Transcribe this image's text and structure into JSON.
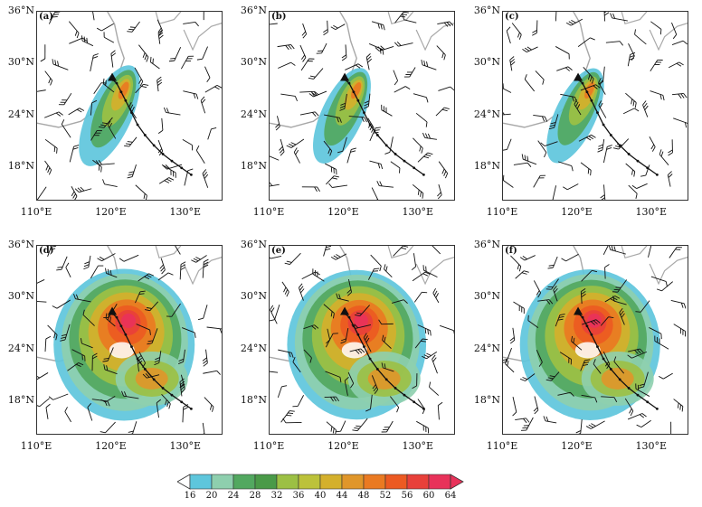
{
  "panels": [
    {
      "id": "a",
      "label": "(a)",
      "intensity": 0.55
    },
    {
      "id": "b",
      "label": "(b)",
      "intensity": 0.4
    },
    {
      "id": "c",
      "label": "(c)",
      "intensity": 0.38
    },
    {
      "id": "d",
      "label": "(d)",
      "intensity": 1.0
    },
    {
      "id": "e",
      "label": "(e)",
      "intensity": 0.95
    },
    {
      "id": "f",
      "label": "(f)",
      "intensity": 0.98
    }
  ],
  "y_ticks": [
    "36°N",
    "30°N",
    "24°N",
    "18°N"
  ],
  "x_ticks": [
    "110°E",
    "120°E",
    "130°E"
  ],
  "colorbar": {
    "levels": [
      "16",
      "20",
      "24",
      "28",
      "32",
      "36",
      "40",
      "44",
      "48",
      "52",
      "56",
      "60",
      "64"
    ],
    "colors": [
      "#5ec6dc",
      "#8ecfae",
      "#52a860",
      "#4a9a48",
      "#9cc044",
      "#bcc23a",
      "#d4b02c",
      "#e0962a",
      "#ea7a22",
      "#ec5a22",
      "#e8403a",
      "#e8325a"
    ]
  },
  "colors": {
    "land_outline": "#a8a8a8",
    "barb": "#111111",
    "track": "#111111"
  }
}
